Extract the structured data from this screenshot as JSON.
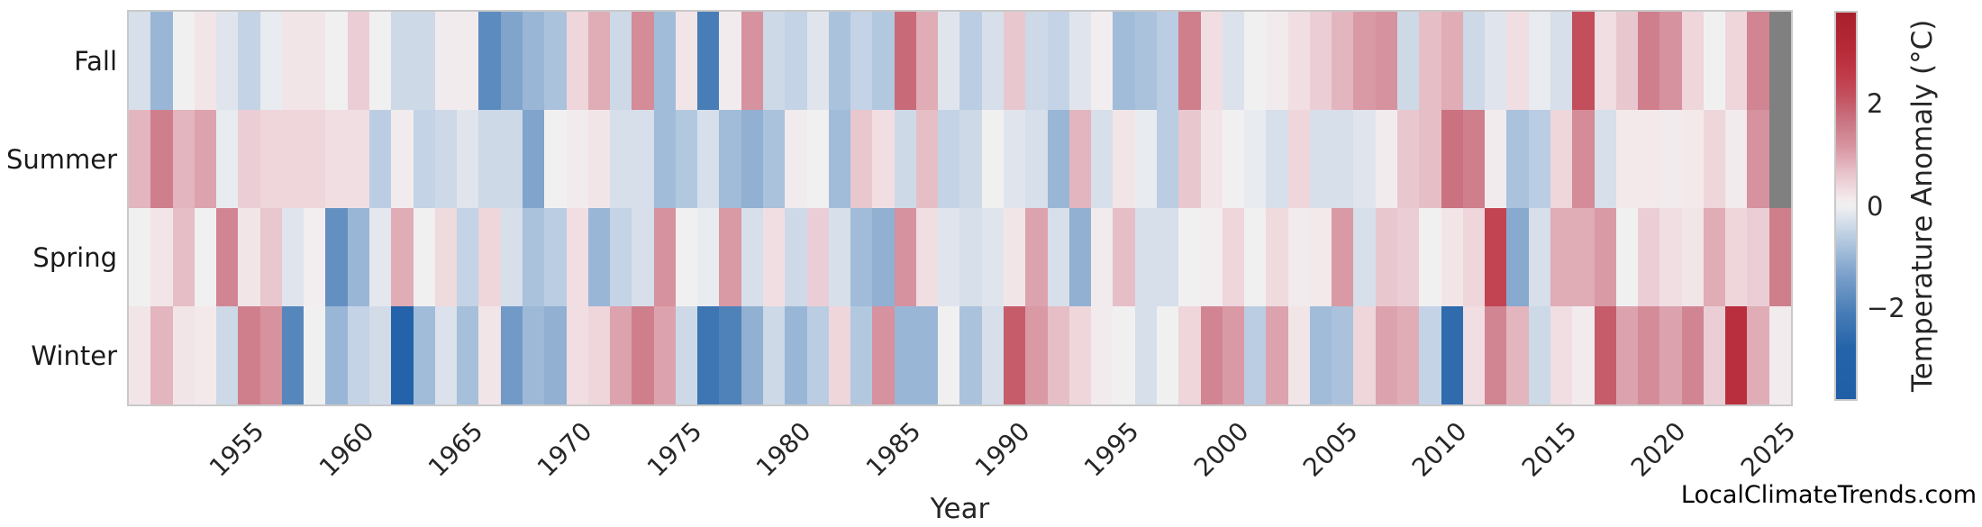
{
  "watermark": "LocalClimateTrends.com",
  "chart_data": {
    "type": "heatmap",
    "xlabel": "Year",
    "ylabel": "",
    "x_start_year": 1950,
    "x_end_year": 2025,
    "x_ticks": [
      1955,
      1960,
      1965,
      1970,
      1975,
      1980,
      1985,
      1990,
      1995,
      2000,
      2005,
      2010,
      2015,
      2020,
      2025
    ],
    "grid": false,
    "missing_value_color": "#808080",
    "colormap": "vlag blue-white-red diverging",
    "colormap_anchors": [
      [
        0.0,
        32,
        94,
        166
      ],
      [
        0.13,
        36,
        99,
        169
      ],
      [
        0.22,
        70,
        124,
        182
      ],
      [
        0.32,
        122,
        160,
        202
      ],
      [
        0.42,
        186,
        205,
        226
      ],
      [
        0.48,
        228,
        232,
        238
      ],
      [
        0.5,
        241,
        240,
        241
      ],
      [
        0.52,
        243,
        233,
        235
      ],
      [
        0.58,
        233,
        198,
        206
      ],
      [
        0.65,
        216,
        150,
        162
      ],
      [
        0.72,
        202,
        116,
        130
      ],
      [
        0.78,
        196,
        82,
        96
      ],
      [
        0.84,
        192,
        58,
        72
      ],
      [
        0.9,
        184,
        42,
        56
      ],
      [
        1.0,
        168,
        32,
        44
      ]
    ],
    "colorbar": {
      "label": "Temperature Anomaly (°C)",
      "vmin": -3.8,
      "vmax": 3.8,
      "tick_values": [
        2,
        0,
        -2
      ],
      "tick_labels": [
        "2",
        "0",
        "−2"
      ]
    },
    "rows": [
      {
        "label": "Fall",
        "values": [
          -0.3,
          -1.0,
          0.0,
          0.2,
          -0.2,
          -0.5,
          -0.1,
          0.2,
          0.2,
          0.0,
          0.5,
          0.0,
          -0.4,
          -0.4,
          0.1,
          0.1,
          -1.8,
          -1.3,
          -1.0,
          -0.8,
          0.4,
          0.9,
          -0.4,
          1.3,
          -0.9,
          0.2,
          -2.1,
          0.1,
          1.2,
          -0.4,
          -0.5,
          -0.2,
          -0.8,
          -0.5,
          -0.7,
          1.8,
          0.9,
          -0.2,
          -0.6,
          -0.3,
          0.6,
          -0.4,
          -0.5,
          -0.2,
          0.05,
          -0.9,
          -0.8,
          -0.6,
          1.5,
          0.3,
          -0.25,
          0.0,
          0.1,
          0.3,
          0.5,
          0.8,
          1.1,
          1.2,
          -0.4,
          0.7,
          0.9,
          -0.4,
          -0.2,
          0.3,
          -0.1,
          -0.3,
          2.2,
          0.3,
          0.6,
          1.5,
          1.2,
          0.4,
          0.0,
          0.4,
          1.4,
          null
        ]
      },
      {
        "label": "Summer",
        "values": [
          0.8,
          1.5,
          0.8,
          1.0,
          -0.1,
          0.5,
          0.4,
          0.4,
          0.4,
          0.3,
          0.3,
          -0.6,
          0.1,
          -0.5,
          -0.4,
          -0.2,
          -0.4,
          -0.4,
          -1.3,
          0.0,
          0.1,
          0.2,
          -0.3,
          -0.3,
          -0.9,
          -0.7,
          -0.3,
          -0.9,
          -1.1,
          -0.8,
          0.1,
          0.0,
          -0.9,
          0.6,
          0.3,
          -0.4,
          0.7,
          -0.5,
          -0.4,
          0.0,
          -0.2,
          -0.3,
          -1.0,
          0.8,
          -0.3,
          0.2,
          -0.1,
          -0.6,
          0.6,
          0.2,
          0.0,
          -0.1,
          -0.3,
          0.4,
          -0.3,
          -0.3,
          -0.2,
          0.1,
          0.6,
          0.7,
          1.7,
          1.5,
          0.1,
          -0.8,
          -0.6,
          0.4,
          1.3,
          -0.3,
          0.15,
          0.15,
          0.1,
          0.15,
          0.4,
          0.1,
          1.2,
          null
        ]
      },
      {
        "label": "Spring",
        "values": [
          0.0,
          0.2,
          0.7,
          0.0,
          1.4,
          0.2,
          0.6,
          -0.2,
          0.05,
          -1.7,
          -1.0,
          -0.15,
          0.9,
          0.0,
          0.35,
          -0.5,
          0.4,
          -0.3,
          -0.8,
          -0.6,
          0.3,
          -1.0,
          -0.5,
          -0.3,
          1.2,
          0.0,
          -0.1,
          1.1,
          -0.3,
          0.3,
          -0.4,
          0.5,
          -0.3,
          -0.9,
          -1.1,
          1.2,
          0.3,
          -0.2,
          -0.3,
          -0.2,
          0.2,
          1.0,
          -0.3,
          -1.1,
          0.1,
          0.7,
          -0.3,
          -0.3,
          0.0,
          0.05,
          0.4,
          0.0,
          0.35,
          0.1,
          0.15,
          1.1,
          -0.3,
          0.6,
          0.5,
          0.0,
          0.2,
          0.4,
          2.4,
          -1.2,
          -0.3,
          0.9,
          0.9,
          1.1,
          0.0,
          0.5,
          0.3,
          0.2,
          0.9,
          0.4,
          0.5,
          1.5
        ]
      },
      {
        "label": "Winter",
        "values": [
          0.2,
          0.8,
          0.2,
          0.15,
          -0.4,
          1.5,
          1.2,
          -1.9,
          0.0,
          -1.0,
          -0.5,
          -0.35,
          -2.9,
          -0.9,
          -0.25,
          -0.85,
          0.2,
          -1.5,
          -0.95,
          -1.1,
          0.3,
          0.4,
          1.0,
          1.5,
          1.0,
          -0.4,
          -2.3,
          -2.0,
          -1.1,
          -0.4,
          -1.0,
          -0.6,
          0.4,
          -0.7,
          1.2,
          -1.0,
          -1.0,
          0.0,
          -0.8,
          -0.3,
          2.0,
          1.1,
          0.7,
          0.4,
          0.1,
          0.0,
          -0.3,
          0.0,
          0.4,
          1.4,
          1.1,
          -0.6,
          1.0,
          0.2,
          -0.9,
          -0.8,
          0.4,
          1.0,
          0.9,
          -0.5,
          -2.6,
          0.3,
          1.4,
          0.8,
          -0.4,
          0.3,
          0.1,
          2.0,
          1.0,
          1.3,
          1.0,
          1.4,
          0.5,
          2.9,
          0.9,
          0.1
        ]
      }
    ]
  }
}
